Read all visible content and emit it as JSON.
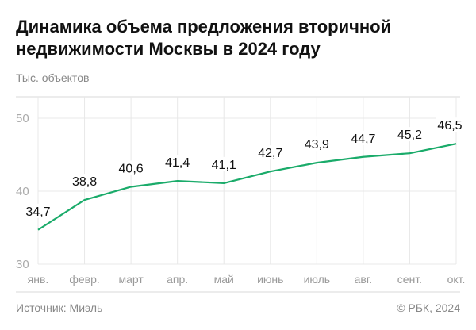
{
  "title": "Динамика объема предложения вторичной недвижимости Москвы в 2024 году",
  "footer": {
    "source": "Источник: Миэль",
    "copyright": "© РБК, 2024"
  },
  "chart_data": {
    "type": "line",
    "title": "Динамика объема предложения вторичной недвижимости Москвы в 2024 году",
    "ylabel": "Тыс. объектов",
    "categories": [
      "янв.",
      "февр.",
      "март",
      "апр.",
      "май",
      "июнь",
      "июль",
      "авг.",
      "сент.",
      "окт."
    ],
    "values": [
      34.7,
      38.8,
      40.6,
      41.4,
      41.1,
      42.7,
      43.9,
      44.7,
      45.2,
      46.5
    ],
    "data_labels": [
      "34,7",
      "38,8",
      "40,6",
      "41,4",
      "41,1",
      "42,7",
      "43,9",
      "44,7",
      "45,2",
      "46,5"
    ],
    "yticks": [
      "30",
      "40",
      "50"
    ],
    "ylim": [
      30,
      53
    ],
    "grid": true,
    "color": "#1aab6a"
  }
}
